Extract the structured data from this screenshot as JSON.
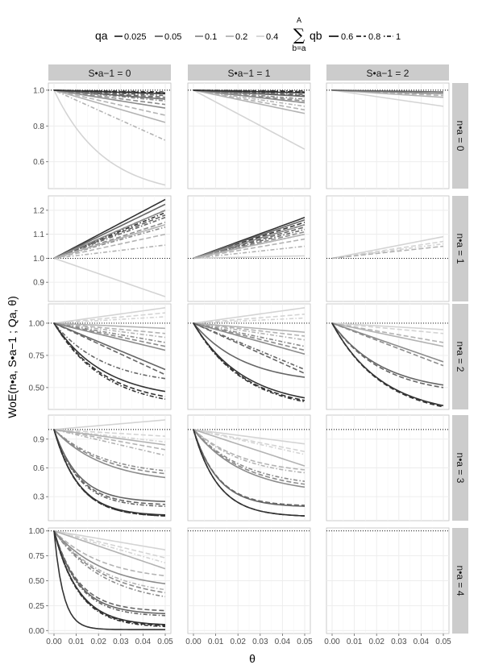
{
  "chart_data": {
    "type": "line",
    "layout": "faceted grid: rows by n_a, columns by S_{a-1}",
    "xlabel": "θ",
    "ylabel": "WoE(n•a, S•a−1 ; Qa, θ)",
    "x_ticks": [
      "0.00",
      "0.01",
      "0.02",
      "0.03",
      "0.04",
      "0.05"
    ],
    "xlim": [
      0,
      0.05
    ],
    "reference_line": 1.0,
    "grid": true,
    "legend": {
      "placement": "top",
      "qa_title": "qa",
      "qa_values": [
        "0.025",
        "0.05",
        "0.1",
        "0.2",
        "0.4"
      ],
      "qa_colors": [
        "#333333",
        "#666666",
        "#8c8c8c",
        "#b3b3b3",
        "#d4d4d4"
      ],
      "qb_sum_top": "A",
      "qb_sum_symbol": "∑",
      "qb_sum_bottom": "b=a",
      "qb_title": "qb",
      "qb_values": [
        "0.6",
        "0.8",
        "1"
      ],
      "qb_linetypes": [
        "solid",
        "dashed",
        "dotdash"
      ]
    },
    "col_strips": [
      "S•a−1 = 0",
      "S•a−1 = 1",
      "S•a−1 = 2"
    ],
    "row_strips": [
      "n•a = 0",
      "n•a = 1",
      "n•a = 2",
      "n•a = 3",
      "n•a = 4"
    ],
    "rows": [
      {
        "ylim": [
          0.45,
          1.04
        ],
        "y_ticks": [
          "0.6",
          "0.8",
          "1.0"
        ],
        "y_tick_values": [
          0.6,
          0.8,
          1.0
        ]
      },
      {
        "ylim": [
          0.82,
          1.26
        ],
        "y_ticks": [
          "0.9",
          "1.0",
          "1.1",
          "1.2"
        ],
        "y_tick_values": [
          0.9,
          1.0,
          1.1,
          1.2
        ]
      },
      {
        "ylim": [
          0.33,
          1.15
        ],
        "y_ticks": [
          "0.50",
          "0.75",
          "1.00"
        ],
        "y_tick_values": [
          0.5,
          0.75,
          1.0
        ]
      },
      {
        "ylim": [
          0.05,
          1.15
        ],
        "y_ticks": [
          "0.3",
          "0.6",
          "0.9"
        ],
        "y_tick_values": [
          0.3,
          0.6,
          0.9
        ]
      },
      {
        "ylim": [
          -0.03,
          1.03
        ],
        "y_ticks": [
          "0.00",
          "0.25",
          "0.50",
          "0.75",
          "1.00"
        ],
        "y_tick_values": [
          0,
          0.25,
          0.5,
          0.75,
          1.0
        ]
      }
    ],
    "panels": [
      {
        "row": 0,
        "col": 0,
        "lines": [
          {
            "qa": "0.4",
            "qb": "0.6",
            "y_end": 0.47
          },
          {
            "qa": "0.2",
            "qb": "0.6",
            "y_end": 0.82
          },
          {
            "qa": "0.2",
            "qb": "0.8",
            "y_end": 0.86
          },
          {
            "qa": "0.2",
            "qb": "1",
            "y_end": 0.72
          },
          {
            "qa": "0.1",
            "qb": "0.6",
            "y_end": 0.9
          },
          {
            "qa": "0.1",
            "qb": "0.8",
            "y_end": 0.92
          },
          {
            "qa": "0.1",
            "qb": "1",
            "y_end": 0.94
          },
          {
            "qa": "0.05",
            "qb": "0.6",
            "y_end": 0.95
          },
          {
            "qa": "0.05",
            "qb": "0.8",
            "y_end": 0.96
          },
          {
            "qa": "0.05",
            "qb": "1",
            "y_end": 0.97
          },
          {
            "qa": "0.025",
            "qb": "0.6",
            "y_end": 0.98
          },
          {
            "qa": "0.025",
            "qb": "0.8",
            "y_end": 0.985
          },
          {
            "qa": "0.025",
            "qb": "1",
            "y_end": 0.99
          }
        ]
      },
      {
        "row": 0,
        "col": 1,
        "lines": [
          {
            "qa": "0.4",
            "qb": "0.6",
            "y_end": 0.67
          },
          {
            "qa": "0.2",
            "qb": "0.6",
            "y_end": 0.87
          },
          {
            "qa": "0.2",
            "qb": "0.8",
            "y_end": 0.89
          },
          {
            "qa": "0.2",
            "qb": "1",
            "y_end": 0.91
          },
          {
            "qa": "0.1",
            "qb": "0.6",
            "y_end": 0.93
          },
          {
            "qa": "0.1",
            "qb": "0.8",
            "y_end": 0.94
          },
          {
            "qa": "0.1",
            "qb": "1",
            "y_end": 0.95
          },
          {
            "qa": "0.05",
            "qb": "0.6",
            "y_end": 0.965
          },
          {
            "qa": "0.05",
            "qb": "0.8",
            "y_end": 0.97
          },
          {
            "qa": "0.05",
            "qb": "1",
            "y_end": 0.975
          },
          {
            "qa": "0.025",
            "qb": "0.6",
            "y_end": 0.985
          },
          {
            "qa": "0.025",
            "qb": "0.8",
            "y_end": 0.99
          },
          {
            "qa": "0.025",
            "qb": "1",
            "y_end": 0.995
          }
        ]
      },
      {
        "row": 0,
        "col": 2,
        "lines": [
          {
            "qa": "0.4",
            "qb": "0.6",
            "y_end": 0.91
          },
          {
            "qa": "0.2",
            "qb": "0.6",
            "y_end": 0.96
          },
          {
            "qa": "0.2",
            "qb": "0.8",
            "y_end": 0.97
          },
          {
            "qa": "0.1",
            "qb": "0.6",
            "y_end": 0.98
          },
          {
            "qa": "0.05",
            "qb": "0.6",
            "y_end": 0.99
          }
        ]
      },
      {
        "row": 1,
        "col": 0,
        "lines": [
          {
            "qa": "0.4",
            "qb": "0.6",
            "y_end": 0.84
          },
          {
            "qa": "0.025",
            "qb": "0.6",
            "y_end": 1.245
          },
          {
            "qa": "0.025",
            "qb": "0.8",
            "y_end": 1.2
          },
          {
            "qa": "0.025",
            "qb": "1",
            "y_end": 1.19
          },
          {
            "qa": "0.05",
            "qb": "0.6",
            "y_end": 1.225
          },
          {
            "qa": "0.05",
            "qb": "0.8",
            "y_end": 1.18
          },
          {
            "qa": "0.05",
            "qb": "1",
            "y_end": 1.17
          },
          {
            "qa": "0.1",
            "qb": "0.6",
            "y_end": 1.2
          },
          {
            "qa": "0.1",
            "qb": "0.8",
            "y_end": 1.15
          },
          {
            "qa": "0.1",
            "qb": "1",
            "y_end": 1.13
          },
          {
            "qa": "0.2",
            "qb": "0.6",
            "y_end": 1.14
          },
          {
            "qa": "0.2",
            "qb": "0.8",
            "y_end": 1.1
          },
          {
            "qa": "0.2",
            "qb": "1",
            "y_end": 1.055
          }
        ]
      },
      {
        "row": 1,
        "col": 1,
        "lines": [
          {
            "qa": "0.4",
            "qb": "0.6",
            "y_end": 1.01
          },
          {
            "qa": "0.025",
            "qb": "0.6",
            "y_end": 1.17
          },
          {
            "qa": "0.025",
            "qb": "0.8",
            "y_end": 1.15
          },
          {
            "qa": "0.025",
            "qb": "1",
            "y_end": 1.14
          },
          {
            "qa": "0.05",
            "qb": "0.6",
            "y_end": 1.16
          },
          {
            "qa": "0.05",
            "qb": "0.8",
            "y_end": 1.13
          },
          {
            "qa": "0.05",
            "qb": "1",
            "y_end": 1.12
          },
          {
            "qa": "0.1",
            "qb": "0.6",
            "y_end": 1.14
          },
          {
            "qa": "0.1",
            "qb": "0.8",
            "y_end": 1.11
          },
          {
            "qa": "0.1",
            "qb": "1",
            "y_end": 1.1
          },
          {
            "qa": "0.2",
            "qb": "0.6",
            "y_end": 1.1
          },
          {
            "qa": "0.2",
            "qb": "0.8",
            "y_end": 1.08
          },
          {
            "qa": "0.2",
            "qb": "1",
            "y_end": 1.05
          }
        ]
      },
      {
        "row": 1,
        "col": 2,
        "lines": [
          {
            "qa": "0.4",
            "qb": "0.6",
            "y_end": 1.09
          },
          {
            "qa": "0.4",
            "qb": "0.8",
            "y_end": 1.07
          },
          {
            "qa": "0.4",
            "qb": "1",
            "y_end": 1.06
          },
          {
            "qa": "0.2",
            "qb": "0.8",
            "y_end": 1.05
          }
        ]
      },
      {
        "row": 2,
        "col": 0,
        "lines": [
          {
            "qa": "0.4",
            "qb": "0.6",
            "y_end": 1.12
          },
          {
            "qa": "0.4",
            "qb": "0.8",
            "y_end": 1.08
          },
          {
            "qa": "0.4",
            "qb": "1",
            "y_end": 1.05
          },
          {
            "qa": "0.2",
            "qb": "0.6",
            "y_end": 0.96
          },
          {
            "qa": "0.2",
            "qb": "0.8",
            "y_end": 0.92
          },
          {
            "qa": "0.2",
            "qb": "1",
            "y_end": 0.89
          },
          {
            "qa": "0.1",
            "qb": "0.6",
            "y_end": 0.79
          },
          {
            "qa": "0.1",
            "qb": "0.8",
            "y_end": 0.82
          },
          {
            "qa": "0.1",
            "qb": "1",
            "y_end": 0.85
          },
          {
            "qa": "0.05",
            "qb": "0.6",
            "y_end": 0.64
          },
          {
            "qa": "0.05",
            "qb": "0.8",
            "y_end": 0.6
          },
          {
            "qa": "0.05",
            "qb": "1",
            "y_end": 0.57
          },
          {
            "qa": "0.025",
            "qb": "0.6",
            "y_end": 0.47
          },
          {
            "qa": "0.025",
            "qb": "0.8",
            "y_end": 0.43
          },
          {
            "qa": "0.025",
            "qb": "1",
            "y_end": 0.41
          }
        ]
      },
      {
        "row": 2,
        "col": 1,
        "lines": [
          {
            "qa": "0.4",
            "qb": "0.6",
            "y_end": 1.12
          },
          {
            "qa": "0.4",
            "qb": "0.8",
            "y_end": 1.07
          },
          {
            "qa": "0.4",
            "qb": "1",
            "y_end": 1.04
          },
          {
            "qa": "0.2",
            "qb": "0.6",
            "y_end": 0.93
          },
          {
            "qa": "0.2",
            "qb": "0.8",
            "y_end": 0.9
          },
          {
            "qa": "0.2",
            "qb": "1",
            "y_end": 0.87
          },
          {
            "qa": "0.1",
            "qb": "0.6",
            "y_end": 0.76
          },
          {
            "qa": "0.1",
            "qb": "0.8",
            "y_end": 0.79
          },
          {
            "qa": "0.1",
            "qb": "1",
            "y_end": 0.82
          },
          {
            "qa": "0.05",
            "qb": "0.6",
            "y_end": 0.58
          },
          {
            "qa": "0.05",
            "qb": "0.8",
            "y_end": 0.61
          },
          {
            "qa": "0.05",
            "qb": "1",
            "y_end": 0.64
          },
          {
            "qa": "0.025",
            "qb": "0.6",
            "y_end": 0.42
          },
          {
            "qa": "0.025",
            "qb": "0.8",
            "y_end": 0.4
          },
          {
            "qa": "0.025",
            "qb": "1",
            "y_end": 0.39
          }
        ]
      },
      {
        "row": 2,
        "col": 2,
        "lines": [
          {
            "qa": "0.4",
            "qb": "0.6",
            "y_end": 0.95
          },
          {
            "qa": "0.4",
            "qb": "0.8",
            "y_end": 0.92
          },
          {
            "qa": "0.2",
            "qb": "0.6",
            "y_end": 0.82
          },
          {
            "qa": "0.2",
            "qb": "0.8",
            "y_end": 0.85
          },
          {
            "qa": "0.1",
            "qb": "0.6",
            "y_end": 0.7
          },
          {
            "qa": "0.1",
            "qb": "0.8",
            "y_end": 0.67
          },
          {
            "qa": "0.05",
            "qb": "0.6",
            "y_end": 0.52
          },
          {
            "qa": "0.05",
            "qb": "0.8",
            "y_end": 0.5
          },
          {
            "qa": "0.025",
            "qb": "0.6",
            "y_end": 0.36
          },
          {
            "qa": "0.025",
            "qb": "0.8",
            "y_end": 0.35
          }
        ]
      },
      {
        "row": 3,
        "col": 0,
        "lines": [
          {
            "qa": "0.4",
            "qb": "0.6",
            "y_end": 1.1
          },
          {
            "qa": "0.4",
            "qb": "0.8",
            "y_end": 0.93
          },
          {
            "qa": "0.4",
            "qb": "1",
            "y_end": 0.87
          },
          {
            "qa": "0.2",
            "qb": "0.6",
            "y_end": 0.84
          },
          {
            "qa": "0.2",
            "qb": "0.8",
            "y_end": 0.79
          },
          {
            "qa": "0.2",
            "qb": "1",
            "y_end": 0.73
          },
          {
            "qa": "0.1",
            "qb": "0.6",
            "y_end": 0.5
          },
          {
            "qa": "0.1",
            "qb": "0.8",
            "y_end": 0.54
          },
          {
            "qa": "0.1",
            "qb": "1",
            "y_end": 0.57
          },
          {
            "qa": "0.05",
            "qb": "0.6",
            "y_end": 0.25
          },
          {
            "qa": "0.05",
            "qb": "0.8",
            "y_end": 0.22
          },
          {
            "qa": "0.05",
            "qb": "1",
            "y_end": 0.2
          },
          {
            "qa": "0.025",
            "qb": "0.6",
            "y_end": 0.11
          },
          {
            "qa": "0.025",
            "qb": "0.8",
            "y_end": 0.1
          },
          {
            "qa": "0.025",
            "qb": "1",
            "y_end": 0.1
          }
        ]
      },
      {
        "row": 3,
        "col": 1,
        "lines": [
          {
            "qa": "0.4",
            "qb": "0.6",
            "y_end": 0.85
          },
          {
            "qa": "0.4",
            "qb": "0.8",
            "y_end": 0.77
          },
          {
            "qa": "0.4",
            "qb": "1",
            "y_end": 0.74
          },
          {
            "qa": "0.2",
            "qb": "0.6",
            "y_end": 0.62
          },
          {
            "qa": "0.2",
            "qb": "0.8",
            "y_end": 0.58
          },
          {
            "qa": "0.2",
            "qb": "1",
            "y_end": 0.55
          },
          {
            "qa": "0.1",
            "qb": "0.6",
            "y_end": 0.4
          },
          {
            "qa": "0.1",
            "qb": "0.8",
            "y_end": 0.43
          },
          {
            "qa": "0.1",
            "qb": "1",
            "y_end": 0.46
          },
          {
            "qa": "0.05",
            "qb": "0.6",
            "y_end": 0.2
          },
          {
            "qa": "0.05",
            "qb": "0.8",
            "y_end": 0.21
          },
          {
            "qa": "0.025",
            "qb": "0.6",
            "y_end": 0.1
          },
          {
            "qa": "0.025",
            "qb": "0.8",
            "y_end": 0.1
          }
        ]
      },
      {
        "row": 3,
        "col": 2,
        "lines": []
      },
      {
        "row": 4,
        "col": 0,
        "lines": [
          {
            "qa": "0.4",
            "qb": "0.6",
            "y_end": 0.81
          },
          {
            "qa": "0.4",
            "qb": "0.8",
            "y_end": 0.73
          },
          {
            "qa": "0.4",
            "qb": "1",
            "y_end": 0.68
          },
          {
            "qa": "0.2",
            "qb": "0.6",
            "y_end": 0.62
          },
          {
            "qa": "0.2",
            "qb": "0.8",
            "y_end": 0.55
          },
          {
            "qa": "0.2",
            "qb": "1",
            "y_end": 0.41
          },
          {
            "qa": "0.1",
            "qb": "0.6",
            "y_end": 0.47
          },
          {
            "qa": "0.1",
            "qb": "0.8",
            "y_end": 0.38
          },
          {
            "qa": "0.1",
            "qb": "1",
            "y_end": 0.34
          },
          {
            "qa": "0.05",
            "qb": "0.6",
            "y_end": 0.17
          },
          {
            "qa": "0.05",
            "qb": "0.8",
            "y_end": 0.2
          },
          {
            "qa": "0.05",
            "qb": "1",
            "y_end": 0.15
          },
          {
            "qa": "0.025",
            "qb": "0.6",
            "y_end": 0.06
          },
          {
            "qa": "0.025",
            "qb": "0.8",
            "y_end": 0.05
          },
          {
            "qa": "0.025",
            "qb": "1",
            "y_end": 0.04
          },
          {
            "qa": "0.025",
            "qb": "0.6",
            "y_end": 0.01,
            "steep": true
          }
        ]
      },
      {
        "row": 4,
        "col": 1,
        "lines": []
      },
      {
        "row": 4,
        "col": 2,
        "lines": []
      }
    ]
  }
}
